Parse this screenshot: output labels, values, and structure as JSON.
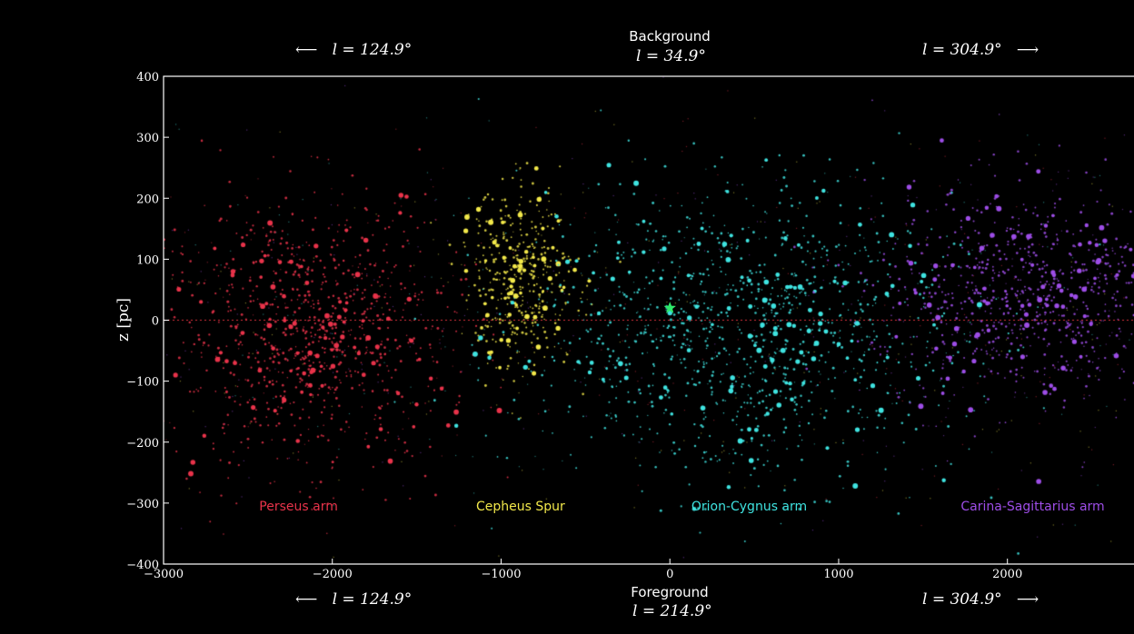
{
  "header": {
    "top_title": "Background",
    "top_longitude": "l = 34.9°",
    "top_left": "l = 124.9°",
    "top_right": "l = 304.9°",
    "bottom_title": "Foreground",
    "bottom_longitude": "l = 214.9°",
    "bottom_left": "l = 124.9°",
    "bottom_right": "l = 304.9°"
  },
  "chart_data": {
    "type": "scatter",
    "xlabel": "",
    "ylabel": "z [pc]",
    "xlim": [
      -3000,
      2750
    ],
    "ylim": [
      -400,
      400
    ],
    "x_ticks": [
      -3000,
      -2000,
      -1000,
      0,
      1000,
      2000
    ],
    "y_ticks": [
      400,
      300,
      200,
      100,
      0,
      -100,
      -200,
      -300,
      -400
    ],
    "x_tick_labels": [
      "−3000",
      "−2000",
      "−1000",
      "0",
      "1000",
      "2000"
    ],
    "y_tick_labels": [
      "400",
      "300",
      "200",
      "100",
      "0",
      "−100",
      "−200",
      "−300",
      "−400"
    ],
    "grid": false,
    "background": "#000000",
    "midplane": {
      "z": 0,
      "color": "#d8303c"
    },
    "sun": {
      "x": 0,
      "z": 20,
      "color": "#2ee86a",
      "marker": "star"
    },
    "series": [
      {
        "name": "Perseus arm",
        "color": "#e8334a",
        "center": [
          -2150,
          -20
        ],
        "spread": [
          420,
          110
        ],
        "count": 900
      },
      {
        "name": "Cepheus Spur",
        "color": "#f2e84a",
        "center": [
          -900,
          70
        ],
        "spread": [
          170,
          75
        ],
        "count": 420
      },
      {
        "name": "Orion-Cygnus arm",
        "color": "#3fe3e0",
        "center": [
          400,
          -20
        ],
        "spread": [
          650,
          120
        ],
        "count": 1100
      },
      {
        "name": "Carina-Sagittarius arm",
        "color": "#9d4de6",
        "center": [
          2150,
          40
        ],
        "spread": [
          480,
          90
        ],
        "count": 800
      }
    ]
  }
}
